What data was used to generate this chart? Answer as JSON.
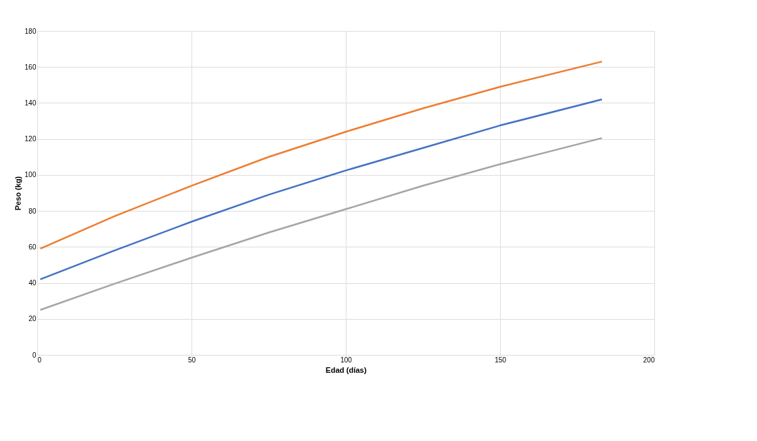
{
  "chart_data": {
    "type": "line",
    "xlabel": "Edad (días)",
    "ylabel": "Peso (kg)",
    "xlim": [
      0,
      200
    ],
    "xticks": [
      0,
      50,
      100,
      150,
      200
    ],
    "ylim": [
      0,
      180
    ],
    "yticks": [
      0,
      20,
      40,
      60,
      80,
      100,
      120,
      140,
      160,
      180
    ],
    "grid": true,
    "legend": false,
    "marker": "none",
    "line_style": "solid",
    "series": [
      {
        "color": "#ed7d31",
        "x": [
          1,
          25,
          50,
          75,
          100,
          125,
          150,
          183
        ],
        "values": [
          59,
          77,
          94,
          110,
          124,
          137,
          149,
          163
        ]
      },
      {
        "color": "#4472c4",
        "x": [
          1,
          25,
          50,
          75,
          100,
          125,
          150,
          183
        ],
        "values": [
          42,
          58,
          74,
          89,
          102.5,
          115,
          127.5,
          142
        ]
      },
      {
        "color": "#a5a5a5",
        "x": [
          1,
          25,
          50,
          75,
          100,
          125,
          150,
          183
        ],
        "values": [
          25,
          39.5,
          54,
          68,
          81,
          94,
          106,
          120.5
        ]
      }
    ]
  }
}
